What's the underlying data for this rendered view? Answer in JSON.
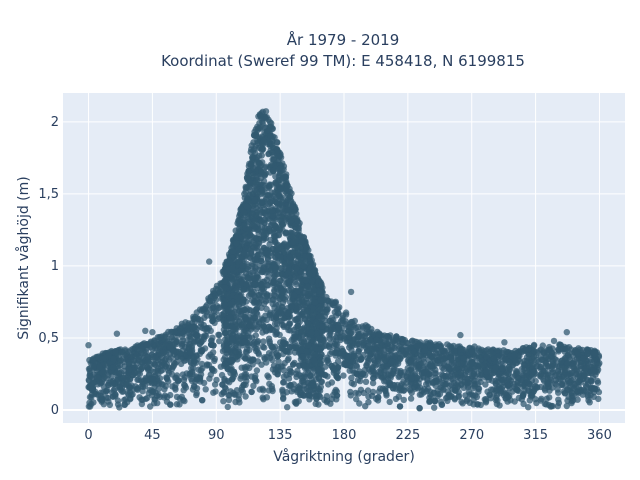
{
  "chart_data": {
    "type": "scatter",
    "title_lines": [
      "År 1979 - 2019",
      "Koordinat (Sweref 99 TM): E 458418, N 6199815"
    ],
    "xlabel": "Vågriktning (grader)",
    "ylabel": "Signifikant våghöjd (m)",
    "xlim": [
      -18,
      378
    ],
    "ylim": [
      -0.09,
      2.2
    ],
    "xticks": [
      0,
      45,
      90,
      135,
      180,
      225,
      270,
      315,
      360
    ],
    "xtick_labels": [
      "0",
      "45",
      "90",
      "135",
      "180",
      "225",
      "270",
      "315",
      "360"
    ],
    "yticks": [
      0,
      0.5,
      1,
      1.5,
      2
    ],
    "ytick_labels": [
      "0",
      "0,5",
      "1",
      "1,5",
      "2"
    ],
    "grid": true,
    "marker_color": "#325a70",
    "plot_background": "#e5ecf6",
    "envelope": {
      "description_values_direction_deg": [
        0,
        15,
        30,
        45,
        60,
        75,
        90,
        100,
        110,
        115,
        120,
        125,
        130,
        135,
        140,
        150,
        160,
        170,
        180,
        190,
        200,
        225,
        250,
        270,
        300,
        315,
        330,
        345,
        360
      ],
      "max_height_m": [
        0.35,
        0.4,
        0.42,
        0.48,
        0.55,
        0.65,
        0.85,
        1.1,
        1.5,
        1.85,
        2.05,
        2.07,
        1.95,
        1.8,
        1.6,
        1.25,
        0.95,
        0.78,
        0.7,
        0.62,
        0.55,
        0.48,
        0.45,
        0.42,
        0.4,
        0.45,
        0.45,
        0.42,
        0.4
      ]
    },
    "outliers": [
      {
        "x": 0,
        "y": 0.45
      },
      {
        "x": 20,
        "y": 0.53
      },
      {
        "x": 40,
        "y": 0.55
      },
      {
        "x": 45,
        "y": 0.54
      },
      {
        "x": 85,
        "y": 1.03
      },
      {
        "x": 185,
        "y": 0.82
      },
      {
        "x": 262,
        "y": 0.52
      },
      {
        "x": 272,
        "y": 0.44
      },
      {
        "x": 293,
        "y": 0.47
      },
      {
        "x": 300,
        "y": 0.38
      },
      {
        "x": 328,
        "y": 0.48
      },
      {
        "x": 337,
        "y": 0.54
      },
      {
        "x": 340,
        "y": 0.42
      },
      {
        "x": 357,
        "y": 0.39
      }
    ]
  }
}
